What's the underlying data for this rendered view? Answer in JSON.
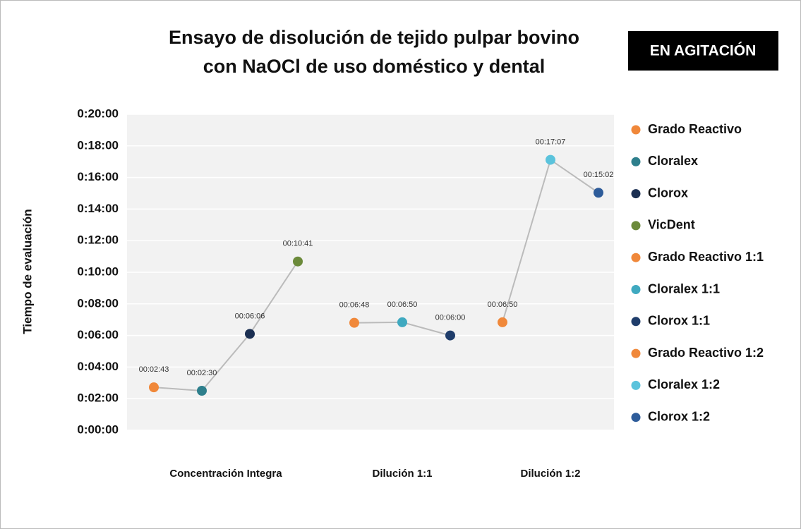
{
  "chart_data": {
    "type": "line",
    "title": [
      "Ensayo de disolución de tejido pulpar bovino",
      "con NaOCl de uso doméstico y dental"
    ],
    "badge": "EN AGITACIÓN",
    "y_label": "Tiempo de evaluación",
    "categories": [
      "Concentración Integra",
      "Dilución 1:1",
      "Dilución 1:2"
    ],
    "ylim": [
      0,
      1200
    ],
    "yticks": [
      {
        "value": 0,
        "label": "0:00:00"
      },
      {
        "value": 120,
        "label": "0:02:00"
      },
      {
        "value": 240,
        "label": "0:04:00"
      },
      {
        "value": 360,
        "label": "0:06:00"
      },
      {
        "value": 480,
        "label": "0:08:00"
      },
      {
        "value": 600,
        "label": "0:10:00"
      },
      {
        "value": 720,
        "label": "0:12:00"
      },
      {
        "value": 840,
        "label": "0:14:00"
      },
      {
        "value": 960,
        "label": "0:16:00"
      },
      {
        "value": 1080,
        "label": "0:18:00"
      },
      {
        "value": 1200,
        "label": "0:20:00"
      }
    ],
    "grid": true,
    "line_color": "#bbbbbb",
    "series": [
      {
        "name": "Grado Reactivo",
        "color": "#f0883a",
        "values": [
          163,
          null,
          null
        ],
        "value_labels": [
          "00:02:43",
          null,
          null
        ]
      },
      {
        "name": "Cloralex",
        "color": "#2e7f8c",
        "values": [
          150,
          null,
          null
        ],
        "value_labels": [
          "00:02:30",
          null,
          null
        ]
      },
      {
        "name": "Clorox",
        "color": "#1b2f52",
        "values": [
          366,
          null,
          null
        ],
        "value_labels": [
          "00:06:06",
          null,
          null
        ]
      },
      {
        "name": "VicDent",
        "color": "#6b8a3a",
        "values": [
          641,
          null,
          null
        ],
        "value_labels": [
          "00:10:41",
          null,
          null
        ]
      },
      {
        "name": "Grado Reactivo 1:1",
        "color": "#f0883a",
        "values": [
          null,
          408,
          null
        ],
        "value_labels": [
          null,
          "00:06:48",
          null
        ]
      },
      {
        "name": "Cloralex 1:1",
        "color": "#3fa9c0",
        "values": [
          null,
          410,
          null
        ],
        "value_labels": [
          null,
          "00:06:50",
          null
        ]
      },
      {
        "name": "Clorox 1:1",
        "color": "#1f3d6b",
        "values": [
          null,
          360,
          null
        ],
        "value_labels": [
          null,
          "00:06:00",
          null
        ]
      },
      {
        "name": "Grado Reactivo 1:2",
        "color": "#f0883a",
        "values": [
          null,
          null,
          410
        ],
        "value_labels": [
          null,
          null,
          "00:06:50"
        ]
      },
      {
        "name": "Cloralex 1:2",
        "color": "#5bc3dc",
        "values": [
          null,
          null,
          1027
        ],
        "value_labels": [
          null,
          null,
          "00:17:07"
        ]
      },
      {
        "name": "Clorox 1:2",
        "color": "#2e5c9a",
        "values": [
          null,
          null,
          902
        ],
        "value_labels": [
          null,
          null,
          "00:15:02"
        ]
      }
    ]
  }
}
